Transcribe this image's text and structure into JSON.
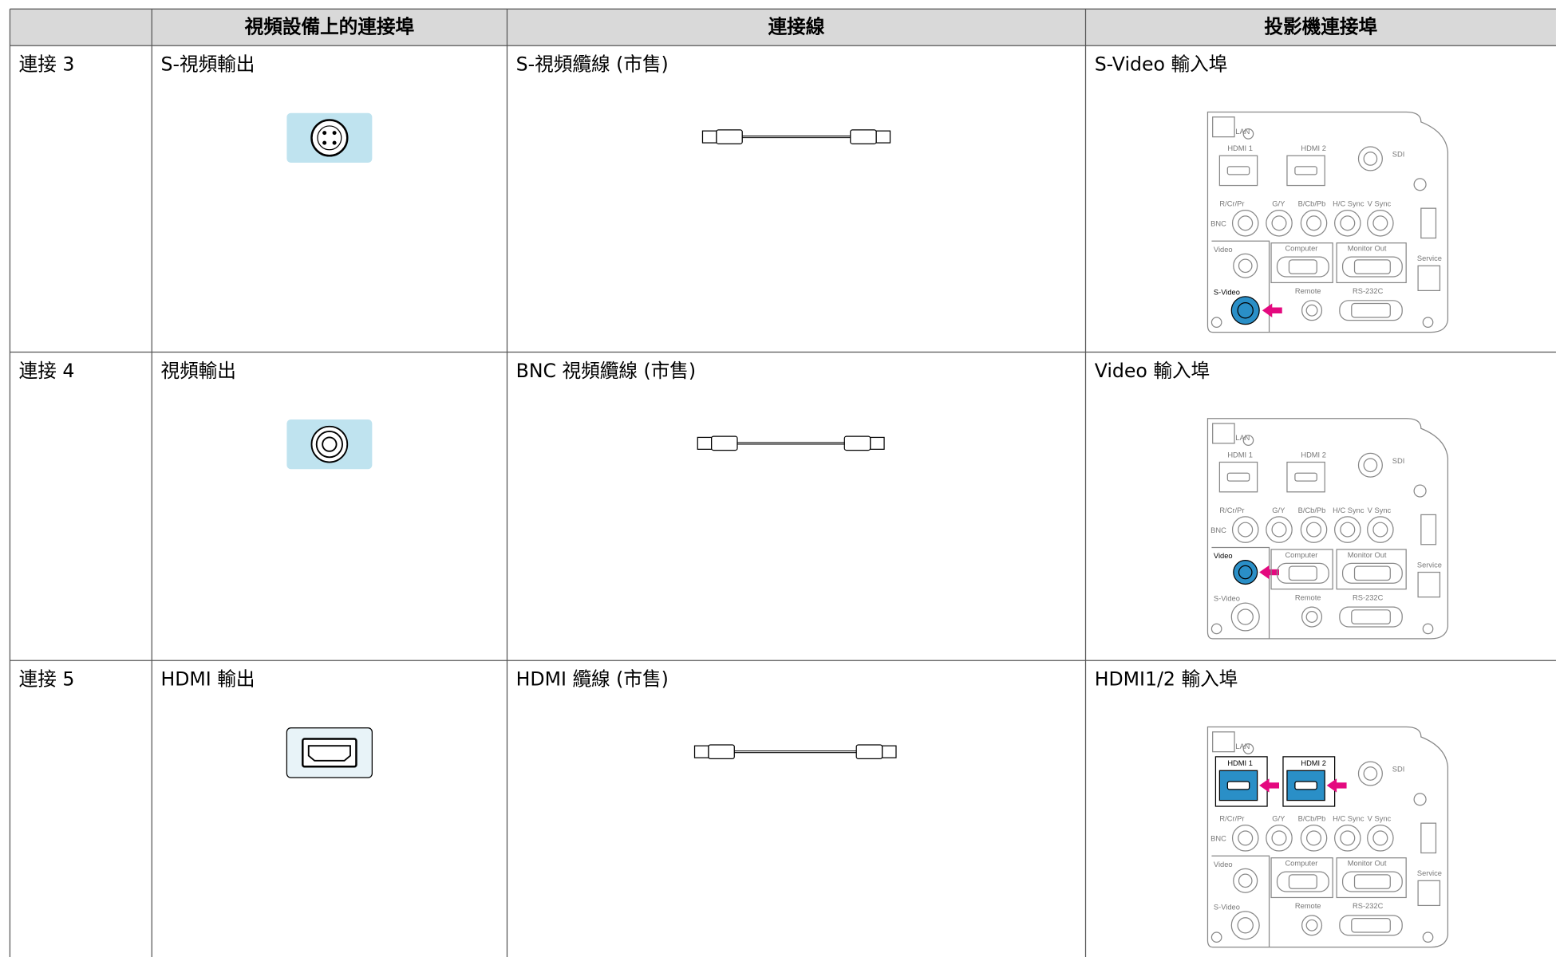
{
  "table": {
    "headers": [
      "視頻設備上的連接埠",
      "連接線",
      "投影機連接埠"
    ],
    "rows": [
      [
        "連接 3",
        "S-視頻輸出",
        "S-視頻纜線 (市售)",
        "S-Video 輸入埠"
      ],
      [
        "連接 4",
        "視頻輸出",
        "BNC 視頻纜線 (市售)",
        "Video 輸入埠"
      ],
      [
        "連接 5",
        "HDMI 輸出",
        "HDMI 纜線 (市售)",
        "HDMI1/2 輸入埠"
      ]
    ]
  },
  "panel_labels": {
    "lan": "LAN",
    "hdmi1": "HDMI 1",
    "hdmi2": "HDMI 2",
    "sdi": "SDI",
    "r": "R/Cr/Pr",
    "g": "G/Y",
    "b": "B/Cb/Pb",
    "hc": "H/C Sync",
    "v": "V Sync",
    "bnc": "BNC",
    "video": "Video",
    "computer": "Computer",
    "monitor": "Monitor Out",
    "service": "Service",
    "svideo": "S-Video",
    "remote": "Remote",
    "rs": "RS-232C"
  }
}
